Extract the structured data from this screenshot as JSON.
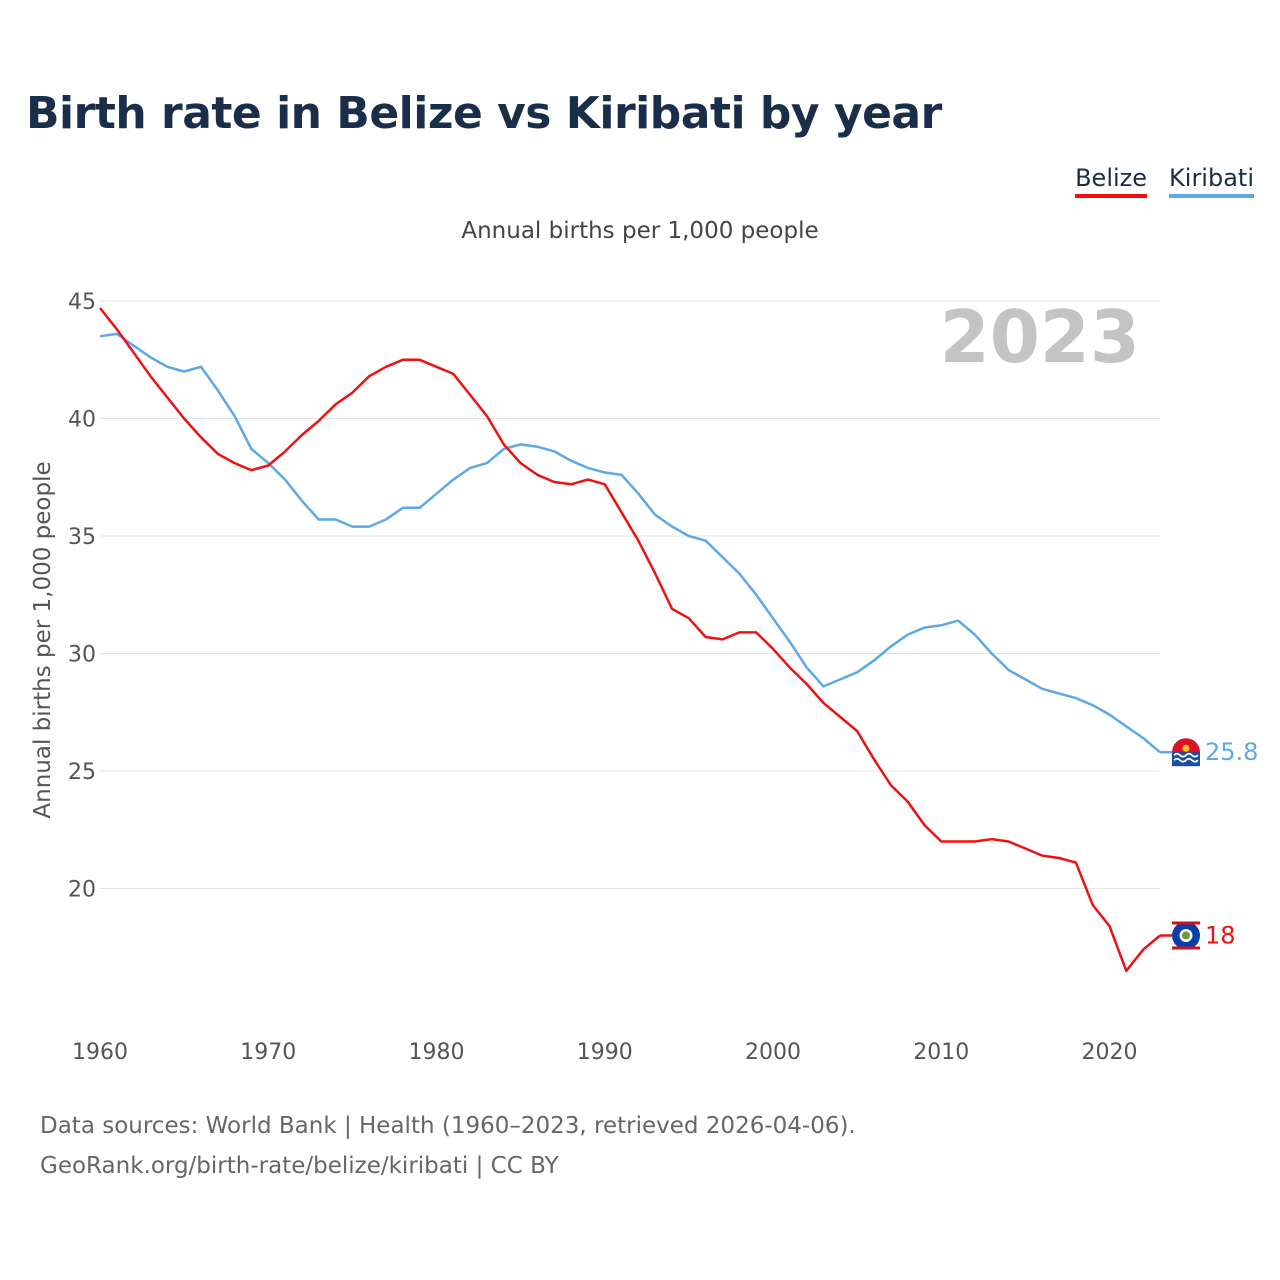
{
  "title": "Birth rate in Belize vs Kiribati by year",
  "subtitle": "Annual births per 1,000 people",
  "year_label": "2023",
  "legend": [
    {
      "label": "Belize",
      "color": "#ee1111"
    },
    {
      "label": "Kiribati",
      "color": "#5ea8e8"
    }
  ],
  "footer": {
    "line1": "Data sources: World Bank | Health (1960–2023, retrieved 2026-04-06).",
    "line2": "GeoRank.org/birth-rate/belize/kiribati | CC BY"
  },
  "chart_data": {
    "type": "line",
    "title": "Birth rate in Belize vs Kiribati by year",
    "ylabel": "Annual births per 1,000 people",
    "xlabel": "",
    "xlim": [
      1960,
      2023
    ],
    "ylim": [
      15,
      45
    ],
    "xticks": [
      1960,
      1970,
      1980,
      1990,
      2000,
      2010,
      2020
    ],
    "yticks": [
      20,
      25,
      30,
      35,
      40,
      45
    ],
    "grid": true,
    "x": [
      1960,
      1961,
      1962,
      1963,
      1964,
      1965,
      1966,
      1967,
      1968,
      1969,
      1970,
      1971,
      1972,
      1973,
      1974,
      1975,
      1976,
      1977,
      1978,
      1979,
      1980,
      1981,
      1982,
      1983,
      1984,
      1985,
      1986,
      1987,
      1988,
      1989,
      1990,
      1991,
      1992,
      1993,
      1994,
      1995,
      1996,
      1997,
      1998,
      1999,
      2000,
      2001,
      2002,
      2003,
      2004,
      2005,
      2006,
      2007,
      2008,
      2009,
      2010,
      2011,
      2012,
      2013,
      2014,
      2015,
      2016,
      2017,
      2018,
      2019,
      2020,
      2021,
      2022,
      2023
    ],
    "series": [
      {
        "name": "Belize",
        "color": "#ee1111",
        "end_label": "18",
        "values": [
          44.7,
          43.8,
          42.8,
          41.8,
          40.9,
          40.0,
          39.2,
          38.5,
          38.1,
          37.8,
          38.0,
          38.6,
          39.3,
          39.9,
          40.6,
          41.1,
          41.8,
          42.2,
          42.5,
          42.5,
          42.2,
          41.9,
          41.0,
          40.1,
          38.9,
          38.1,
          37.6,
          37.3,
          37.2,
          37.4,
          37.2,
          36.0,
          34.8,
          33.4,
          31.9,
          31.5,
          30.7,
          30.6,
          30.9,
          30.9,
          30.2,
          29.4,
          28.7,
          27.9,
          27.3,
          26.7,
          25.5,
          24.4,
          23.7,
          22.7,
          22.0,
          22.0,
          22.0,
          22.1,
          22.0,
          21.7,
          21.4,
          21.3,
          21.1,
          19.3,
          18.4,
          16.5,
          17.4,
          18.0
        ]
      },
      {
        "name": "Kiribati",
        "color": "#5ea8e8",
        "end_label": "25.8",
        "values": [
          43.5,
          43.6,
          43.1,
          42.6,
          42.2,
          42.0,
          42.2,
          41.2,
          40.1,
          38.7,
          38.1,
          37.4,
          36.5,
          35.7,
          35.7,
          35.4,
          35.4,
          35.7,
          36.2,
          36.2,
          36.8,
          37.4,
          37.9,
          38.1,
          38.7,
          38.9,
          38.8,
          38.6,
          38.2,
          37.9,
          37.7,
          37.6,
          36.8,
          35.9,
          35.4,
          35.0,
          34.8,
          34.1,
          33.4,
          32.5,
          31.5,
          30.5,
          29.4,
          28.6,
          28.9,
          29.2,
          29.7,
          30.3,
          30.8,
          31.1,
          31.2,
          31.4,
          30.8,
          30.0,
          29.3,
          28.9,
          28.5,
          28.3,
          28.1,
          27.8,
          27.4,
          26.9,
          26.4,
          25.8
        ]
      }
    ]
  }
}
